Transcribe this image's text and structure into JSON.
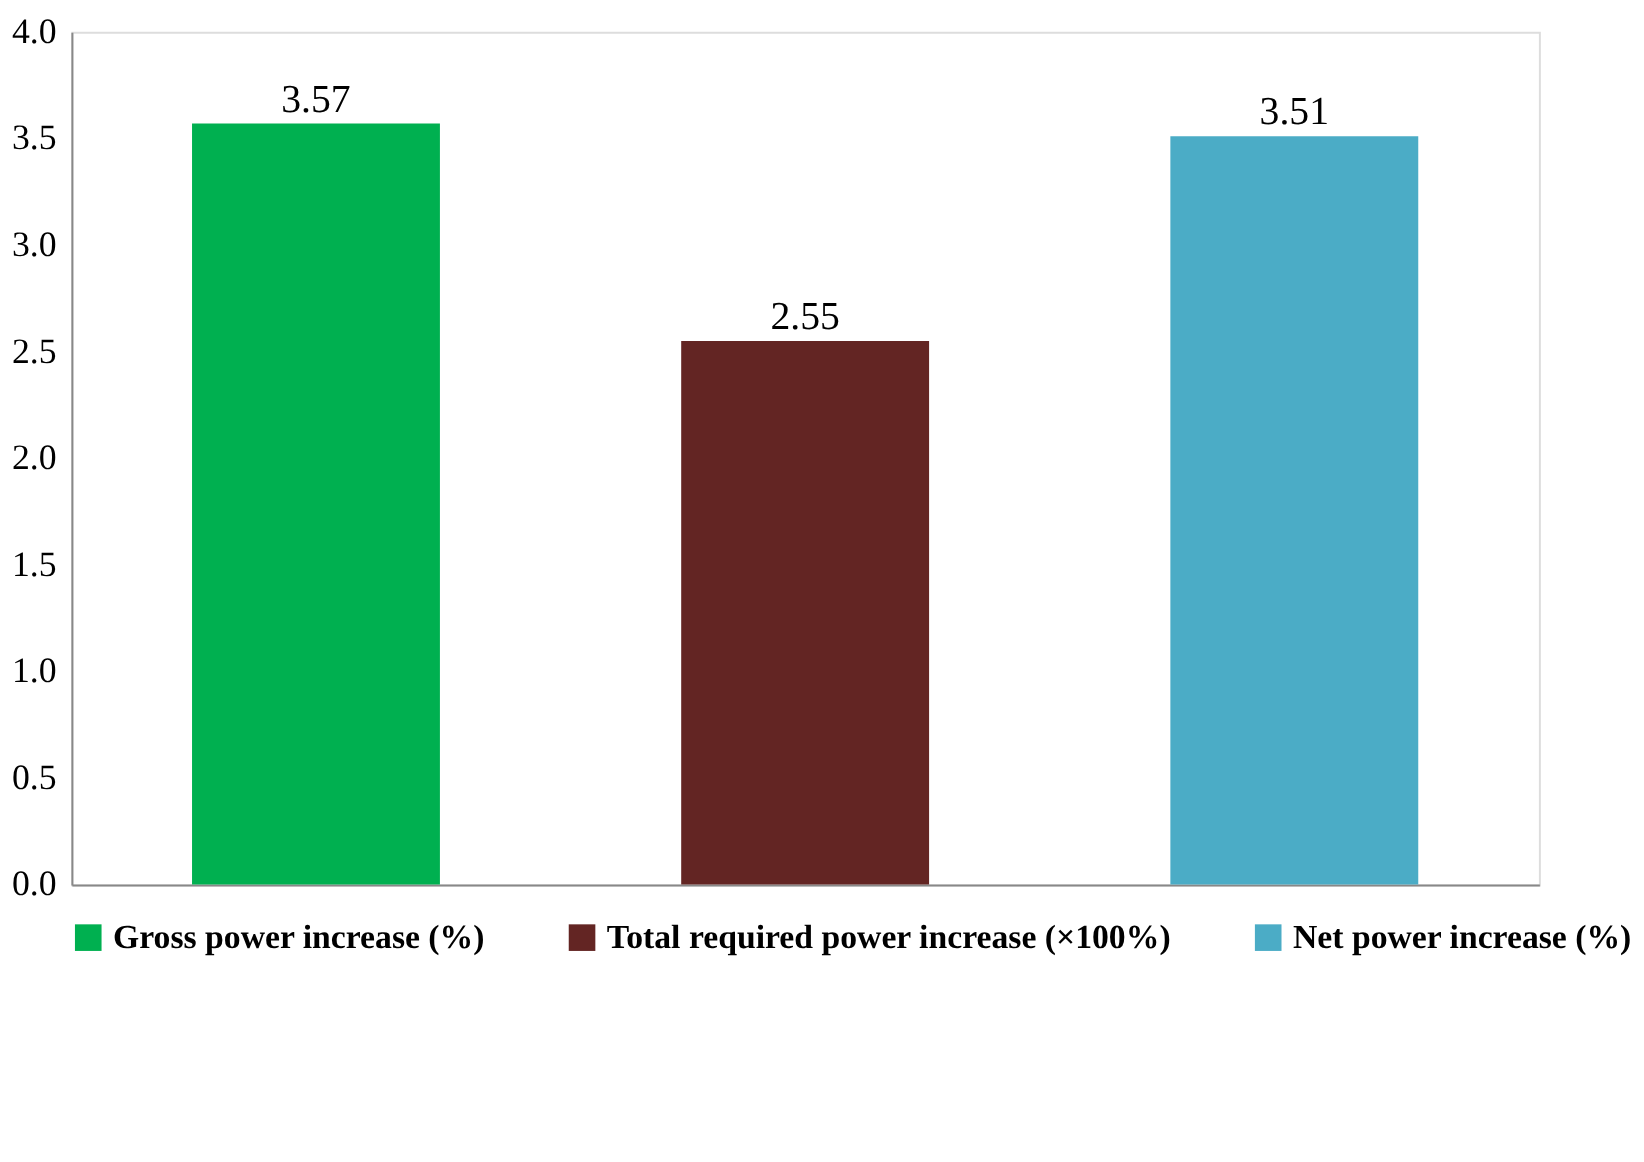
{
  "chart_data": {
    "type": "bar",
    "categories": [
      null,
      null,
      null
    ],
    "series": [
      {
        "name": "Gross power increase (%)",
        "color": "#00b050",
        "values": [
          3.57,
          null,
          null
        ]
      },
      {
        "name": "Total required power increase (×100%)",
        "color": "#632523",
        "values": [
          null,
          2.55,
          null
        ]
      },
      {
        "name": "Net power increase (%)",
        "color": "#4bacc6",
        "values": [
          null,
          null,
          3.51
        ]
      }
    ],
    "ylim": [
      0,
      4
    ],
    "yticks": [
      {
        "value": 0,
        "label": "0.0"
      },
      0.5,
      {
        "value": 1,
        "label": "1.0"
      },
      1.5,
      {
        "value": 2,
        "label": "2.0"
      },
      2.5,
      {
        "value": 3,
        "label": "3.0"
      },
      3.5,
      {
        "value": 4,
        "label": "4.0"
      }
    ],
    "data_labels": true,
    "legend": "bottom",
    "tick_labels": "y",
    "grid": false
  }
}
